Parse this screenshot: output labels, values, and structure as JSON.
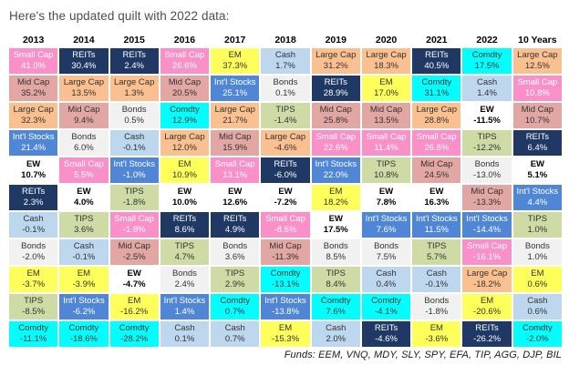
{
  "title": "Here's the updated quilt with 2022 data:",
  "footer": "Funds: EEM, VNQ, MDY, SLY, SPY, EFA, TIP, AGG, DJP, BIL",
  "chart_data": {
    "type": "table",
    "subtype": "asset-class-returns-quilt",
    "columns": [
      "2013",
      "2014",
      "2015",
      "2016",
      "2017",
      "2018",
      "2019",
      "2020",
      "2021",
      "2022",
      "10 Years"
    ],
    "rows_per_column": 11,
    "asset_styles": {
      "Large Cap": {
        "bg": "#FBC08F",
        "text": "#333333",
        "bold": false
      },
      "Mid Cap": {
        "bg": "#E2A7A3",
        "text": "#333333",
        "bold": false
      },
      "Small Cap": {
        "bg": "#FB90C8",
        "text": "#ffffff",
        "bold": false
      },
      "Int'l Stocks": {
        "bg": "#4F86D6",
        "text": "#ffffff",
        "bold": false
      },
      "EM": {
        "bg": "#FFFF5C",
        "text": "#333333",
        "bold": false
      },
      "REITs": {
        "bg": "#1F3864",
        "text": "#ffffff",
        "bold": false
      },
      "Bonds": {
        "bg": "#F1F1F1",
        "text": "#333333",
        "bold": false
      },
      "TIPS": {
        "bg": "#CEDBA4",
        "text": "#333333",
        "bold": false
      },
      "Comdty": {
        "bg": "#00FFFF",
        "text": "#333333",
        "bold": false
      },
      "Cash": {
        "bg": "#BDD7EE",
        "text": "#333333",
        "bold": false
      },
      "EW": {
        "bg": "#FFFFFF",
        "text": "#000000",
        "bold": true
      }
    },
    "cells": {
      "2013": [
        {
          "label": "Small Cap",
          "value": "41.0%"
        },
        {
          "label": "Mid Cap",
          "value": "35.2%"
        },
        {
          "label": "Large Cap",
          "value": "32.3%"
        },
        {
          "label": "Int'l Stocks",
          "value": "21.4%"
        },
        {
          "label": "EW",
          "value": "10.7%"
        },
        {
          "label": "REITs",
          "value": "2.3%"
        },
        {
          "label": "Cash",
          "value": "-0.1%"
        },
        {
          "label": "Bonds",
          "value": "-2.0%"
        },
        {
          "label": "EM",
          "value": "-3.7%"
        },
        {
          "label": "TIPS",
          "value": "-8.5%"
        },
        {
          "label": "Comdty",
          "value": "-11.1%"
        }
      ],
      "2014": [
        {
          "label": "REITs",
          "value": "30.4%"
        },
        {
          "label": "Large Cap",
          "value": "13.5%"
        },
        {
          "label": "Mid Cap",
          "value": "9.4%"
        },
        {
          "label": "Bonds",
          "value": "6.0%"
        },
        {
          "label": "Small Cap",
          "value": "5.5%"
        },
        {
          "label": "EW",
          "value": "4.0%"
        },
        {
          "label": "TIPS",
          "value": "3.6%"
        },
        {
          "label": "Cash",
          "value": "-0.1%"
        },
        {
          "label": "EM",
          "value": "-3.9%"
        },
        {
          "label": "Int'l Stocks",
          "value": "-6.2%"
        },
        {
          "label": "Comdty",
          "value": "-18.6%"
        }
      ],
      "2015": [
        {
          "label": "REITs",
          "value": "2.4%"
        },
        {
          "label": "Large Cap",
          "value": "1.3%"
        },
        {
          "label": "Bonds",
          "value": "0.5%"
        },
        {
          "label": "Cash",
          "value": "-0.1%"
        },
        {
          "label": "Int'l Stocks",
          "value": "-1.0%"
        },
        {
          "label": "TIPS",
          "value": "-1.8%"
        },
        {
          "label": "Small Cap",
          "value": "-1.8%"
        },
        {
          "label": "Mid Cap",
          "value": "-2.5%"
        },
        {
          "label": "EW",
          "value": "-4.7%"
        },
        {
          "label": "EM",
          "value": "-16.2%"
        },
        {
          "label": "Comdty",
          "value": "-28.2%"
        }
      ],
      "2016": [
        {
          "label": "Small Cap",
          "value": "26.6%"
        },
        {
          "label": "Mid Cap",
          "value": "20.5%"
        },
        {
          "label": "Comdty",
          "value": "12.9%"
        },
        {
          "label": "Large Cap",
          "value": "12.0%"
        },
        {
          "label": "EM",
          "value": "10.9%"
        },
        {
          "label": "EW",
          "value": "10.0%"
        },
        {
          "label": "REITs",
          "value": "8.6%"
        },
        {
          "label": "TIPS",
          "value": "4.7%"
        },
        {
          "label": "Bonds",
          "value": "2.4%"
        },
        {
          "label": "Int'l Stocks",
          "value": "1.4%"
        },
        {
          "label": "Cash",
          "value": "0.1%"
        }
      ],
      "2017": [
        {
          "label": "EM",
          "value": "37.3%"
        },
        {
          "label": "Int'l Stocks",
          "value": "25.1%"
        },
        {
          "label": "Large Cap",
          "value": "21.7%"
        },
        {
          "label": "Mid Cap",
          "value": "15.9%"
        },
        {
          "label": "Small Cap",
          "value": "13.1%"
        },
        {
          "label": "EW",
          "value": "12.6%"
        },
        {
          "label": "REITs",
          "value": "4.9%"
        },
        {
          "label": "Bonds",
          "value": "3.6%"
        },
        {
          "label": "TIPS",
          "value": "2.9%"
        },
        {
          "label": "Comdty",
          "value": "0.7%"
        },
        {
          "label": "Cash",
          "value": "0.7%"
        }
      ],
      "2018": [
        {
          "label": "Cash",
          "value": "1.7%"
        },
        {
          "label": "Bonds",
          "value": "0.1%"
        },
        {
          "label": "TIPS",
          "value": "-1.4%"
        },
        {
          "label": "Large Cap",
          "value": "-4.6%"
        },
        {
          "label": "REITs",
          "value": "-6.0%"
        },
        {
          "label": "EW",
          "value": "-7.2%"
        },
        {
          "label": "Small Cap",
          "value": "-8.6%"
        },
        {
          "label": "Mid Cap",
          "value": "-11.3%"
        },
        {
          "label": "Comdty",
          "value": "-13.1%"
        },
        {
          "label": "Int'l Stocks",
          "value": "-13.8%"
        },
        {
          "label": "EM",
          "value": "-15.3%"
        }
      ],
      "2019": [
        {
          "label": "Large Cap",
          "value": "31.2%"
        },
        {
          "label": "REITs",
          "value": "28.9%"
        },
        {
          "label": "Mid Cap",
          "value": "25.8%"
        },
        {
          "label": "Small Cap",
          "value": "22.6%"
        },
        {
          "label": "Int'l Stocks",
          "value": "22.0%"
        },
        {
          "label": "EM",
          "value": "18.2%"
        },
        {
          "label": "EW",
          "value": "17.5%"
        },
        {
          "label": "Bonds",
          "value": "8.5%"
        },
        {
          "label": "TIPS",
          "value": "8.4%"
        },
        {
          "label": "Comdty",
          "value": "7.6%"
        },
        {
          "label": "Cash",
          "value": "2.0%"
        }
      ],
      "2020": [
        {
          "label": "Large Cap",
          "value": "18.3%"
        },
        {
          "label": "EM",
          "value": "17.0%"
        },
        {
          "label": "Mid Cap",
          "value": "13.5%"
        },
        {
          "label": "Small Cap",
          "value": "11.4%"
        },
        {
          "label": "TIPS",
          "value": "10.8%"
        },
        {
          "label": "EW",
          "value": "7.8%"
        },
        {
          "label": "Int'l Stocks",
          "value": "7.6%"
        },
        {
          "label": "Bonds",
          "value": "7.5%"
        },
        {
          "label": "Cash",
          "value": "0.4%"
        },
        {
          "label": "Comdty",
          "value": "-4.1%"
        },
        {
          "label": "REITs",
          "value": "-4.6%"
        }
      ],
      "2021": [
        {
          "label": "REITs",
          "value": "40.5%"
        },
        {
          "label": "Comdty",
          "value": "31.1%"
        },
        {
          "label": "Large Cap",
          "value": "28.8%"
        },
        {
          "label": "Small Cap",
          "value": "26.8%"
        },
        {
          "label": "Mid Cap",
          "value": "24.5%"
        },
        {
          "label": "EW",
          "value": "16.3%"
        },
        {
          "label": "Int'l Stocks",
          "value": "11.5%"
        },
        {
          "label": "TIPS",
          "value": "5.7%"
        },
        {
          "label": "Cash",
          "value": "-0.1%"
        },
        {
          "label": "Bonds",
          "value": "-1.8%"
        },
        {
          "label": "EM",
          "value": "-3.6%"
        }
      ],
      "2022": [
        {
          "label": "Comdty",
          "value": "17.5%"
        },
        {
          "label": "Cash",
          "value": "1.4%"
        },
        {
          "label": "EW",
          "value": "-11.5%"
        },
        {
          "label": "TIPS",
          "value": "-12.2%"
        },
        {
          "label": "Bonds",
          "value": "-13.0%"
        },
        {
          "label": "Mid Cap",
          "value": "-13.3%"
        },
        {
          "label": "Int'l Stocks",
          "value": "-14.4%"
        },
        {
          "label": "Small Cap",
          "value": "-16.1%"
        },
        {
          "label": "Large Cap",
          "value": "-18.2%"
        },
        {
          "label": "EM",
          "value": "-20.6%"
        },
        {
          "label": "REITs",
          "value": "-26.2%"
        }
      ],
      "10 Years": [
        {
          "label": "Large Cap",
          "value": "12.5%"
        },
        {
          "label": "Small Cap",
          "value": "10.8%"
        },
        {
          "label": "Mid Cap",
          "value": "10.7%"
        },
        {
          "label": "REITs",
          "value": "6.4%"
        },
        {
          "label": "EW",
          "value": "5.1%"
        },
        {
          "label": "Int'l Stocks",
          "value": "4.4%"
        },
        {
          "label": "TIPS",
          "value": "1.0%"
        },
        {
          "label": "Bonds",
          "value": "1.0%"
        },
        {
          "label": "EM",
          "value": "0.6%"
        },
        {
          "label": "Cash",
          "value": "0.6%"
        },
        {
          "label": "Comdty",
          "value": "-2.0%"
        }
      ]
    }
  }
}
